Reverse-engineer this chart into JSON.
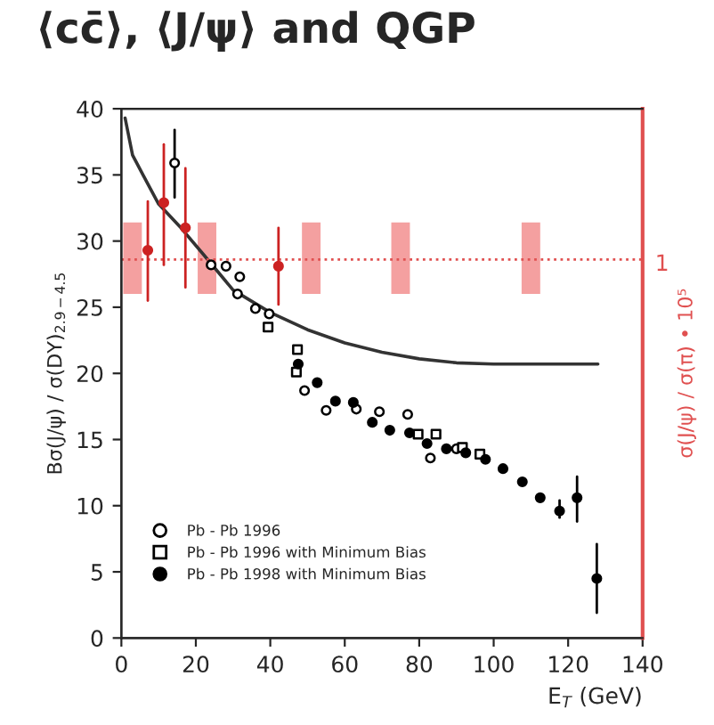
{
  "chart_data": {
    "type": "scatter",
    "title": "⟨cc̄⟩, ⟨J/ψ⟩ and QGP",
    "xlabel": "E$_{T}$ (GeV)",
    "ylabel": "Bσ(J/ψ) / σ(DY)$_{2.9−4.5}$",
    "y2label": "σ(J/ψ) / σ(π) • 10⁵",
    "xlim": [
      0,
      140
    ],
    "xticks": [
      0,
      20,
      40,
      60,
      80,
      100,
      120,
      140
    ],
    "ylim": [
      0,
      40
    ],
    "yticks": [
      0,
      5,
      10,
      15,
      20,
      25,
      30,
      35,
      40
    ],
    "grid": false,
    "legend": "bottom left",
    "ref_lines": [
      {
        "axis": "y",
        "value": 28.6,
        "color": "#e05050",
        "line_style": "dotted"
      }
    ],
    "annotations": [
      "1"
    ],
    "series": [
      {
        "type": "bar",
        "color": "#f4a0a0",
        "x": [
          3,
          23,
          51,
          75,
          110
        ],
        "base": [
          26,
          26,
          26,
          26,
          26
        ],
        "values": [
          5.4,
          5.4,
          5.4,
          5.4,
          5.4
        ]
      },
      {
        "type": "line",
        "color": "#333333",
        "marker": "none",
        "x": [
          1,
          3,
          6,
          10,
          16,
          22,
          30,
          40,
          50,
          60,
          70,
          80,
          90,
          100,
          128
        ],
        "values": [
          39.3,
          36.5,
          34.9,
          32.8,
          31,
          29,
          26.3,
          24.6,
          23.3,
          22.3,
          21.6,
          21.1,
          20.8,
          20.7,
          20.7
        ]
      },
      {
        "color": "#cc2222",
        "marker": "circle",
        "x": [
          7.1,
          11.4,
          17.2,
          42.2
        ],
        "values": [
          29.3,
          32.9,
          31.0,
          28.1
        ],
        "errors": [
          [
            25.5,
            33.0
          ],
          [
            28.2,
            37.3
          ],
          [
            26.5,
            35.5
          ],
          [
            25.2,
            31.0
          ]
        ]
      },
      {
        "name": "Pb - Pb 1996",
        "color": "#000000",
        "marker": "circle",
        "x": [
          14.3,
          24.1,
          28.1,
          31.8,
          31.2,
          36,
          39.7,
          49.2,
          55,
          63.1,
          69.3,
          76.9,
          83,
          90
        ],
        "values": [
          35.9,
          28.2,
          28.1,
          27.3,
          26.0,
          24.9,
          24.5,
          18.7,
          17.2,
          17.3,
          17.1,
          16.9,
          13.6,
          14.3
        ],
        "errors": [
          [
            33.3,
            38.4
          ],
          null,
          null,
          null,
          null,
          null,
          null,
          null,
          null,
          null,
          null,
          null,
          null,
          null
        ]
      },
      {
        "name": "Pb - Pb 1996 with Minimum Bias",
        "color": "#000000",
        "marker": "square",
        "x": [
          39.4,
          47.3,
          47,
          79.7,
          84.5,
          91.6,
          96.3
        ],
        "values": [
          23.5,
          21.8,
          20.1,
          15.4,
          15.4,
          14.4,
          13.9
        ]
      },
      {
        "name": "Pb - Pb 1998 with Minimum Bias",
        "color": "#000000",
        "marker": "circle",
        "x": [
          47.5,
          52.6,
          57.5,
          62.3,
          67.4,
          72.1,
          77.4,
          82.1,
          87.3,
          92.5,
          97.8,
          102.5,
          107.7,
          112.5,
          117.7,
          122.4,
          127.7
        ],
        "values": [
          20.7,
          19.3,
          17.9,
          17.8,
          16.3,
          15.7,
          15.5,
          14.7,
          14.3,
          14.0,
          13.5,
          12.8,
          11.8,
          10.6,
          9.6,
          10.6,
          4.5
        ],
        "errors": [
          null,
          null,
          null,
          null,
          null,
          null,
          null,
          null,
          null,
          null,
          null,
          null,
          null,
          null,
          [
            9.1,
            10.4
          ],
          [
            8.8,
            12.2
          ],
          [
            1.9,
            7.1
          ]
        ]
      }
    ]
  }
}
